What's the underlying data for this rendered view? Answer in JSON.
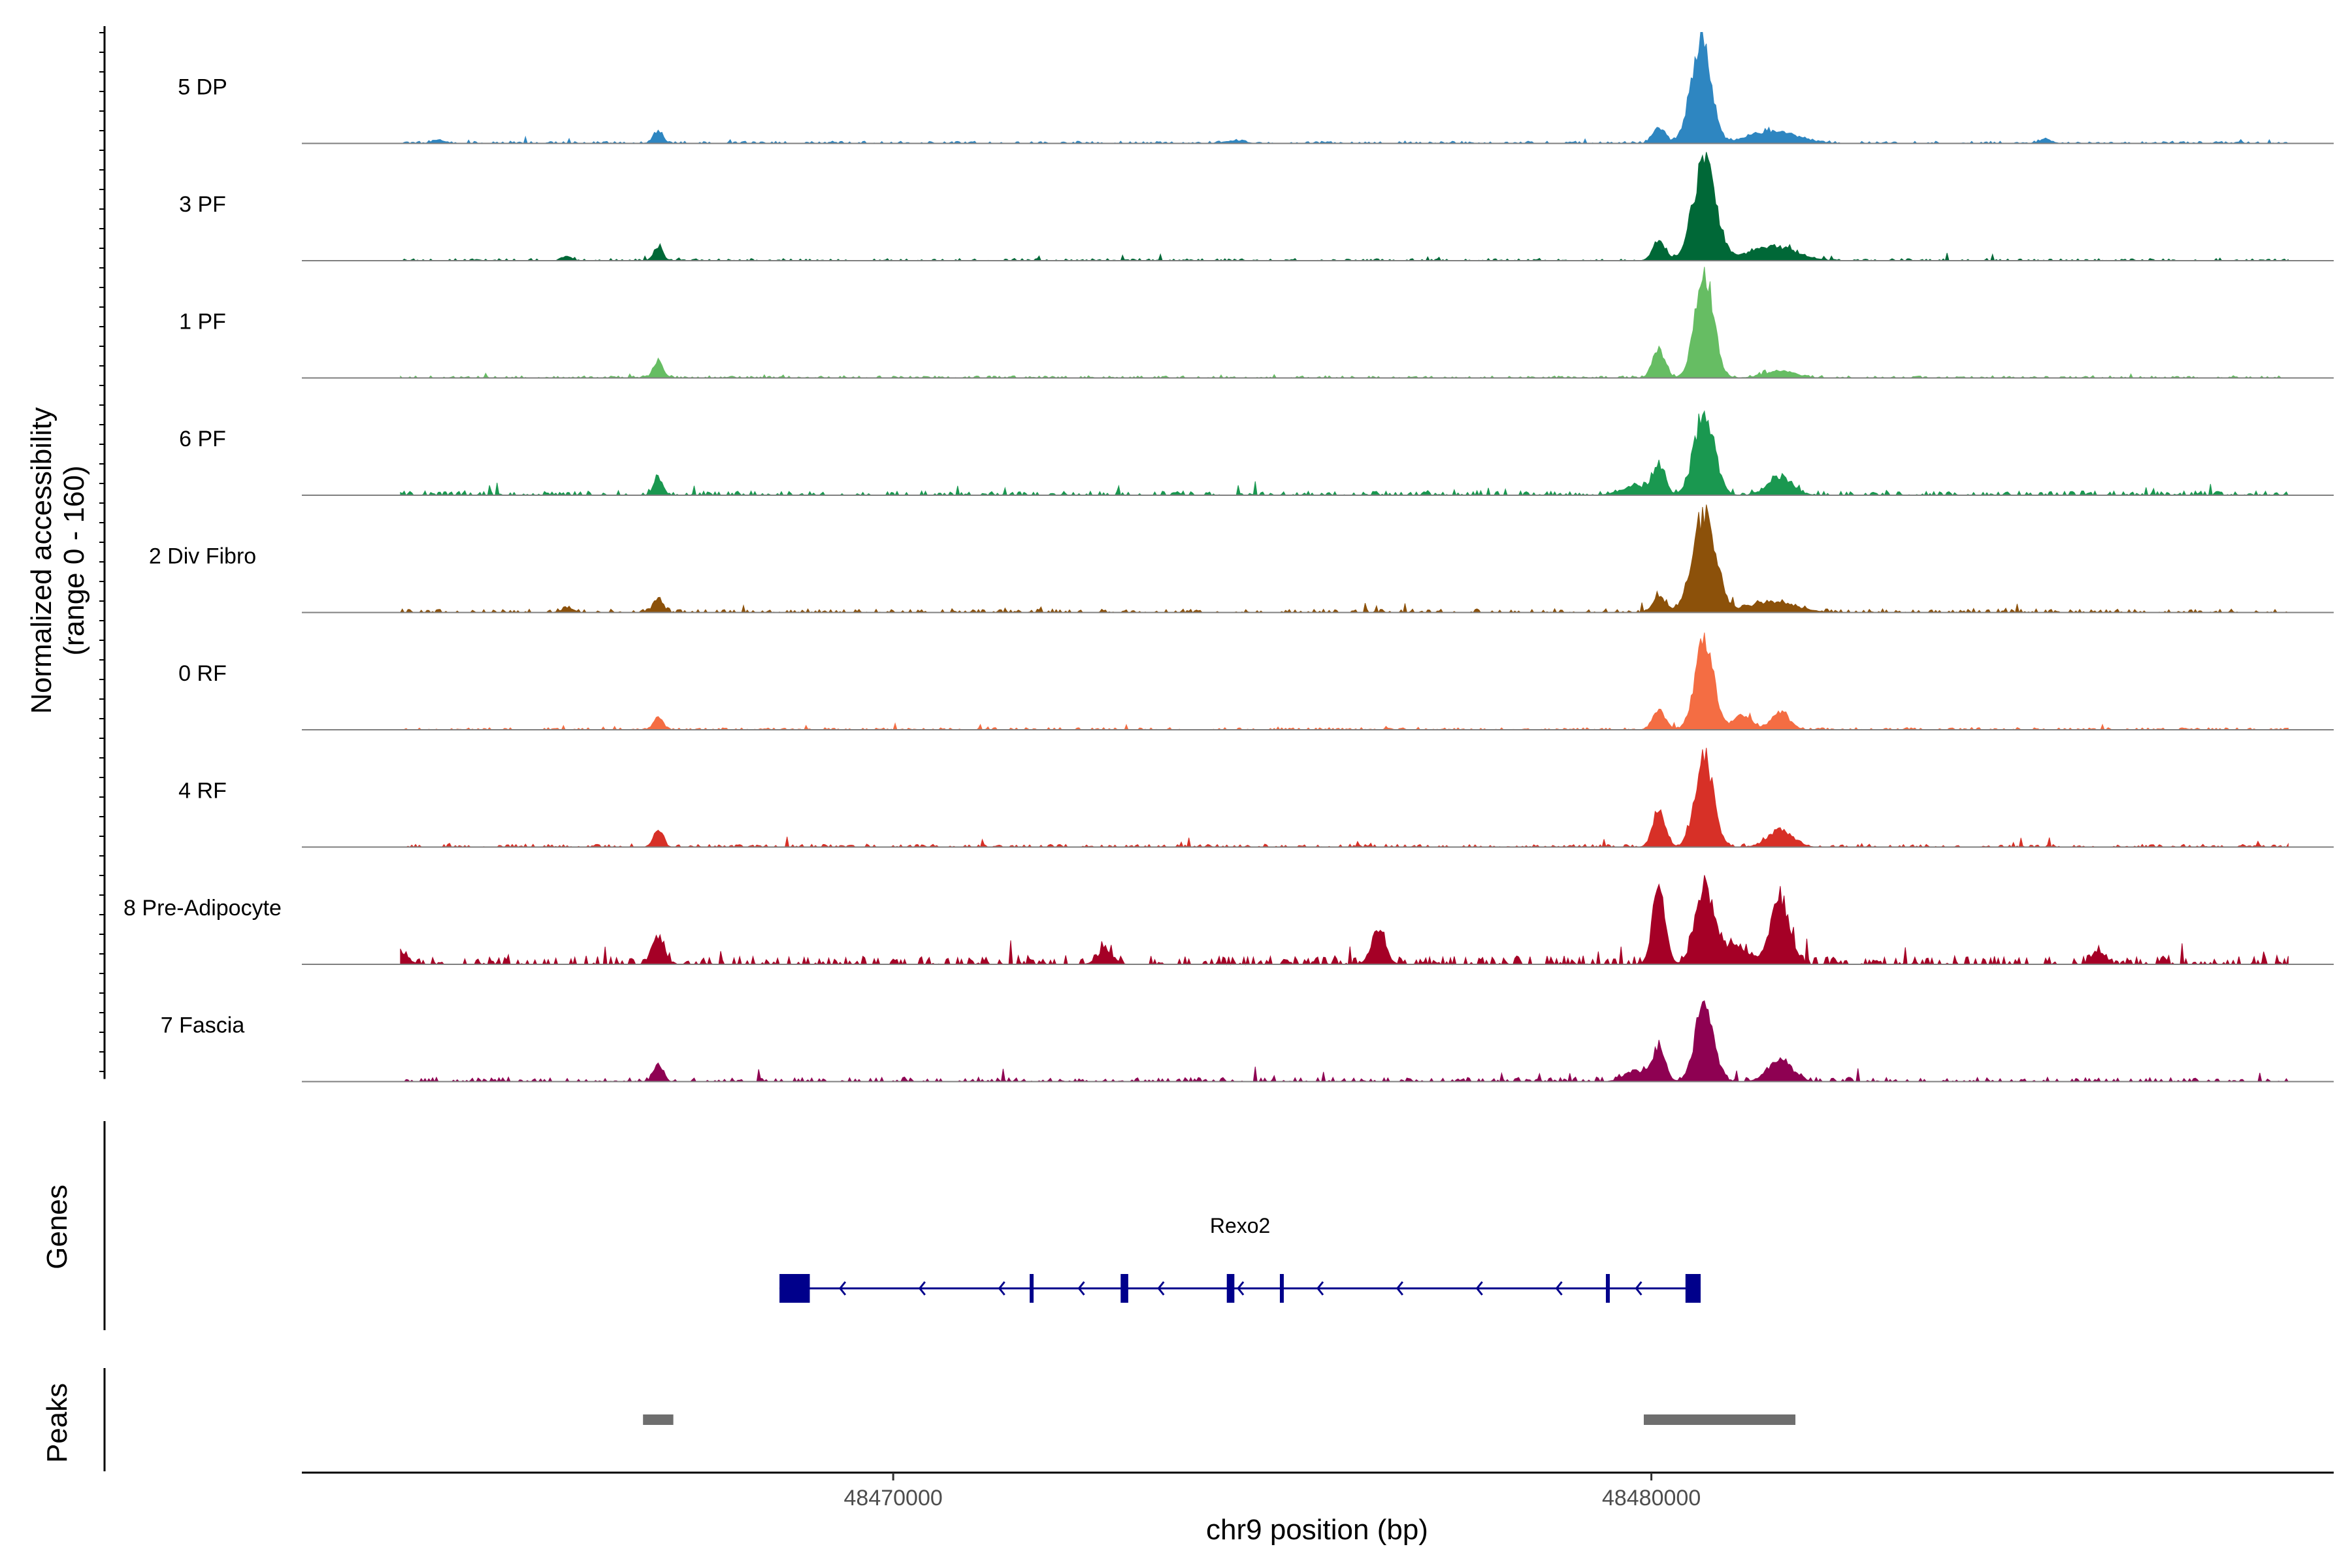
{
  "chart_data": {
    "type": "area",
    "title": "",
    "ylabel_lines": [
      "Normalized accessibility",
      "(range 0 - 160)"
    ],
    "yrange": [
      0,
      160
    ],
    "xlabel": "chr9 position (bp)",
    "xlim": [
      48462200,
      48489000
    ],
    "xticks": [
      48470000,
      48480000
    ],
    "xtick_labels": [
      "48470000",
      "48480000"
    ],
    "tracks": [
      {
        "name": "5 DP",
        "color": "#2E86C1",
        "peaks": [
          [
            48466900,
            18,
            60
          ],
          [
            48480100,
            22,
            80
          ],
          [
            48480650,
            145,
            130
          ],
          [
            48481600,
            18,
            300
          ],
          [
            48464000,
            5,
            80
          ],
          [
            48474500,
            4,
            120
          ],
          [
            48485200,
            6,
            80
          ]
        ],
        "noise": 3
      },
      {
        "name": "3 PF",
        "color": "#006837",
        "peaks": [
          [
            48466900,
            20,
            60
          ],
          [
            48480100,
            30,
            80
          ],
          [
            48480700,
            140,
            150
          ],
          [
            48481600,
            20,
            300
          ],
          [
            48465700,
            6,
            60
          ]
        ],
        "noise": 3
      },
      {
        "name": "1 PF",
        "color": "#66BD63",
        "peaks": [
          [
            48466900,
            25,
            60
          ],
          [
            48480100,
            40,
            80
          ],
          [
            48480700,
            150,
            120
          ],
          [
            48481700,
            10,
            200
          ]
        ],
        "noise": 3
      },
      {
        "name": "6 PF",
        "color": "#1A9850",
        "peaks": [
          [
            48466900,
            25,
            60
          ],
          [
            48480100,
            40,
            80
          ],
          [
            48480700,
            120,
            130
          ],
          [
            48481700,
            25,
            160
          ],
          [
            48479800,
            12,
            200
          ]
        ],
        "noise": 6
      },
      {
        "name": "2 Div Fibro",
        "color": "#8C510A",
        "peaks": [
          [
            48466900,
            20,
            60
          ],
          [
            48480100,
            25,
            80
          ],
          [
            48480700,
            140,
            150
          ],
          [
            48481600,
            15,
            300
          ],
          [
            48465700,
            6,
            80
          ]
        ],
        "noise": 5
      },
      {
        "name": "0 RF",
        "color": "#F46D43",
        "peaks": [
          [
            48466900,
            20,
            60
          ],
          [
            48480100,
            30,
            80
          ],
          [
            48480700,
            130,
            120
          ],
          [
            48481200,
            20,
            120
          ],
          [
            48481700,
            25,
            120
          ]
        ],
        "noise": 3
      },
      {
        "name": "4 RF",
        "color": "#D73027",
        "peaks": [
          [
            48466900,
            25,
            60
          ],
          [
            48480100,
            55,
            80
          ],
          [
            48480700,
            130,
            120
          ],
          [
            48481700,
            25,
            160
          ]
        ],
        "noise": 4
      },
      {
        "name": "8 Pre-Adipocyte",
        "color": "#A50026",
        "peaks": [
          [
            48466900,
            40,
            80
          ],
          [
            48480100,
            120,
            80
          ],
          [
            48480700,
            110,
            120
          ],
          [
            48481700,
            95,
            120
          ],
          [
            48472800,
            20,
            100
          ],
          [
            48476400,
            50,
            90
          ],
          [
            48485900,
            20,
            80
          ],
          [
            48463500,
            15,
            100
          ],
          [
            48481100,
            25,
            200
          ]
        ],
        "noise": 12
      },
      {
        "name": "7 Fascia",
        "color": "#8E0152",
        "peaks": [
          [
            48466900,
            25,
            60
          ],
          [
            48480100,
            50,
            80
          ],
          [
            48480700,
            110,
            120
          ],
          [
            48481700,
            30,
            160
          ],
          [
            48479800,
            15,
            150
          ]
        ],
        "noise": 6
      }
    ],
    "gene": {
      "name": "Rexo2",
      "start": 48468500,
      "end": 48480650,
      "strand": "-",
      "exons": [
        [
          48468500,
          48468900
        ],
        [
          48471800,
          48471850
        ],
        [
          48473000,
          48473100
        ],
        [
          48474400,
          48474500
        ],
        [
          48475100,
          48475150
        ],
        [
          48479400,
          48479450
        ],
        [
          48480450,
          48480650
        ]
      ],
      "color": "#00008B"
    },
    "peaks": [
      [
        48466700,
        48467100
      ],
      [
        48479900,
        48481900
      ]
    ],
    "panel_labels": [
      "Genes",
      "Peaks"
    ],
    "grid": false,
    "legend": "none"
  }
}
